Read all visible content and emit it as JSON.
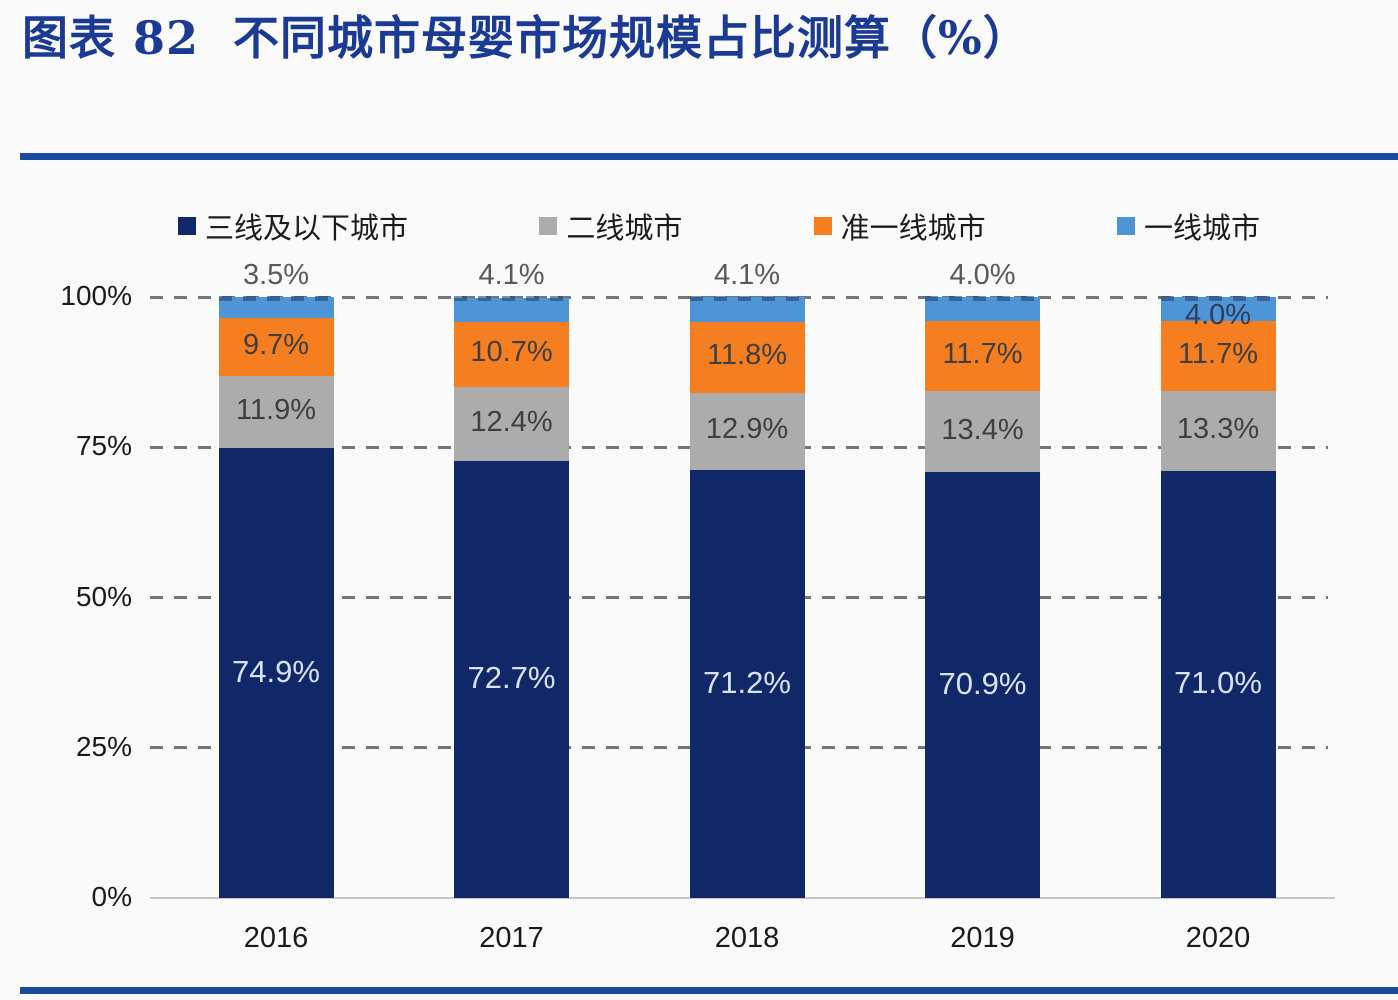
{
  "title": {
    "prefix": "图表 82",
    "text": "不同城市母婴市场规模占比测算（%）"
  },
  "chart_data": {
    "type": "bar",
    "stacked": true,
    "title": "不同城市母婴市场规模占比测算（%）",
    "categories": [
      "2016",
      "2017",
      "2018",
      "2019",
      "2020"
    ],
    "series": [
      {
        "name": "三线及以下城市",
        "color": "#112868",
        "values": [
          74.9,
          72.7,
          71.2,
          70.9,
          71.0
        ]
      },
      {
        "name": "二线城市",
        "color": "#acacac",
        "values": [
          11.9,
          12.4,
          12.9,
          13.4,
          13.3
        ]
      },
      {
        "name": "准一线城市",
        "color": "#f57e20",
        "values": [
          9.7,
          10.7,
          11.8,
          11.7,
          11.7
        ]
      },
      {
        "name": "一线城市",
        "color": "#4e95d8",
        "values": [
          3.5,
          4.1,
          4.1,
          4.0,
          4.0
        ]
      }
    ],
    "top_series_label_positions": [
      "above",
      "above",
      "above",
      "above",
      "inside"
    ],
    "y_ticks": [
      "0%",
      "25%",
      "50%",
      "75%",
      "100%"
    ],
    "y_tick_values": [
      0,
      25,
      50,
      75,
      100
    ],
    "ylim": [
      0,
      100
    ],
    "grid": "dashed-horizontal",
    "legend_position": "top",
    "colors": {
      "navy_label_text": "#d8e2f4",
      "inside_label_text": "#3f3f3f",
      "outside_top_label_text": "#595959",
      "inside_top_label_text": "#2b3e61",
      "gridline": "#757575",
      "axis_text": "#1a1a1a",
      "title_text": "#1b3a94",
      "divider_line": "#1a4a9e",
      "background": "#fafafb"
    }
  }
}
